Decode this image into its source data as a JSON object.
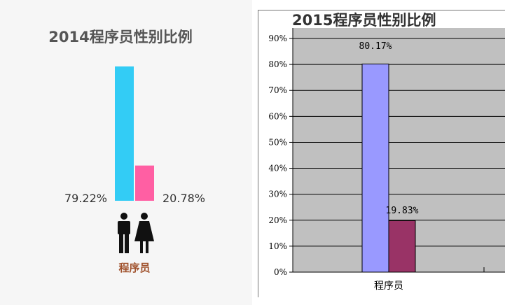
{
  "chart_data": [
    {
      "type": "bar",
      "title": "2014程序员性别比例",
      "categories": [
        "程序员"
      ],
      "series": [
        {
          "name": "男",
          "values": [
            79.22
          ],
          "color": "#33ccf5"
        },
        {
          "name": "女",
          "values": [
            20.78
          ],
          "color": "#ff5fa3"
        }
      ],
      "data_labels": [
        "79.22%",
        "20.78%"
      ],
      "xlabel": "",
      "ylabel": "",
      "grid": false,
      "legend": "icons-below",
      "icons": [
        "male-icon",
        "female-icon"
      ]
    },
    {
      "type": "bar",
      "title": "2015程序员性别比例",
      "categories": [
        "程序员"
      ],
      "series": [
        {
          "values": [
            80.17
          ],
          "color": "#9999ff"
        },
        {
          "values": [
            19.83
          ],
          "color": "#993366"
        }
      ],
      "data_labels": [
        "80.17%",
        "19.83%"
      ],
      "xlabel": "",
      "ylabel": "",
      "ylim": [
        0,
        90
      ],
      "yticks": [
        "0%",
        "10%",
        "20%",
        "30%",
        "40%",
        "50%",
        "60%",
        "70%",
        "80%",
        "90%"
      ],
      "grid": true,
      "plot_background": "#c0c0c0"
    }
  ]
}
